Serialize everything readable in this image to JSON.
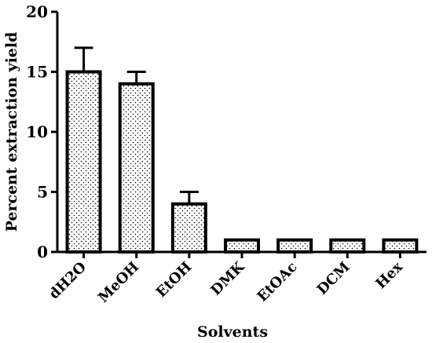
{
  "chart_data": {
    "type": "bar",
    "title": "",
    "xlabel": "Solvents",
    "ylabel": "Percent extraction yield",
    "categories": [
      "dH2O",
      "MeOH",
      "EtOH",
      "DMK",
      "EtOAc",
      "DCM",
      "Hex"
    ],
    "values": [
      15,
      14,
      4,
      1,
      1,
      1,
      1
    ],
    "error_upper": [
      2,
      1,
      1,
      0,
      0,
      0,
      0
    ],
    "ylim": [
      0,
      20
    ],
    "yticks": [
      0,
      5,
      10,
      15,
      20
    ],
    "grid": false,
    "bar_fill": "dotted pattern",
    "colors": {
      "bar_stroke": "#000000",
      "dots": "#000000",
      "background": "#ffffff"
    }
  }
}
